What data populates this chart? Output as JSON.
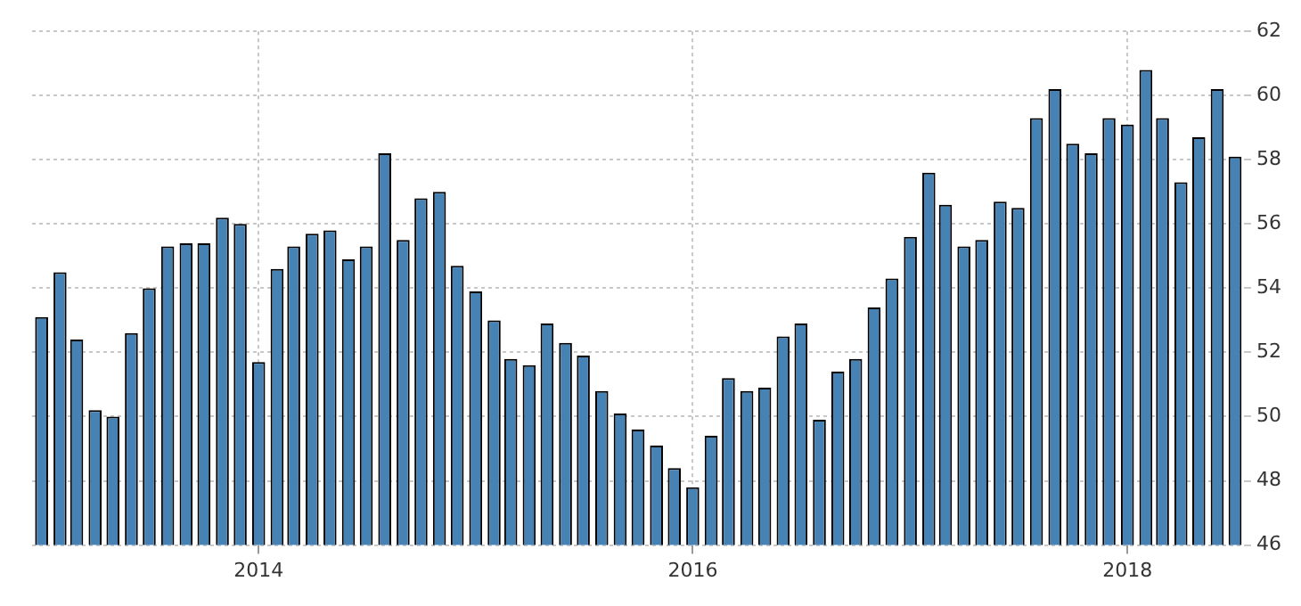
{
  "chart_data": {
    "type": "bar",
    "x": [
      "2013-01",
      "2013-02",
      "2013-03",
      "2013-04",
      "2013-05",
      "2013-06",
      "2013-07",
      "2013-08",
      "2013-09",
      "2013-10",
      "2013-11",
      "2013-12",
      "2014-01",
      "2014-02",
      "2014-03",
      "2014-04",
      "2014-05",
      "2014-06",
      "2014-07",
      "2014-08",
      "2014-09",
      "2014-10",
      "2014-11",
      "2014-12",
      "2015-01",
      "2015-02",
      "2015-03",
      "2015-04",
      "2015-05",
      "2015-06",
      "2015-07",
      "2015-08",
      "2015-09",
      "2015-10",
      "2015-11",
      "2015-12",
      "2016-01",
      "2016-02",
      "2016-03",
      "2016-04",
      "2016-05",
      "2016-06",
      "2016-07",
      "2016-08",
      "2016-09",
      "2016-10",
      "2016-11",
      "2016-12",
      "2017-01",
      "2017-02",
      "2017-03",
      "2017-04",
      "2017-05",
      "2017-06",
      "2017-07",
      "2017-08",
      "2017-09",
      "2017-10",
      "2017-11",
      "2017-12",
      "2018-01",
      "2018-02",
      "2018-03",
      "2018-04",
      "2018-05",
      "2018-06",
      "2018-07"
    ],
    "values": [
      53.1,
      54.5,
      52.4,
      50.2,
      50.0,
      52.6,
      54.0,
      55.3,
      55.4,
      55.4,
      56.2,
      56.0,
      51.7,
      54.6,
      55.3,
      55.7,
      55.8,
      54.9,
      55.3,
      58.2,
      55.5,
      56.8,
      57.0,
      54.7,
      53.9,
      53.0,
      51.8,
      51.6,
      52.9,
      52.3,
      51.9,
      50.8,
      50.1,
      49.6,
      49.1,
      48.4,
      47.8,
      49.4,
      51.2,
      50.8,
      50.9,
      52.5,
      52.9,
      49.9,
      51.4,
      51.8,
      53.4,
      54.3,
      55.6,
      57.6,
      56.6,
      55.3,
      55.5,
      56.7,
      56.5,
      59.3,
      60.2,
      58.5,
      58.2,
      59.3,
      59.1,
      60.8,
      59.3,
      57.3,
      58.7,
      60.2,
      58.1
    ],
    "color": "#4682b4",
    "xlim": [
      "2012-12-16",
      "2018-07-16"
    ],
    "xticks": [
      {
        "value": "2014-01",
        "label": "2014"
      },
      {
        "value": "2016-01",
        "label": "2016"
      },
      {
        "value": "2018-01",
        "label": "2018"
      }
    ],
    "ylim": [
      46,
      62
    ],
    "yticks": [
      46,
      48,
      50,
      52,
      54,
      56,
      58,
      60,
      62
    ],
    "grid": true,
    "legend": false
  }
}
